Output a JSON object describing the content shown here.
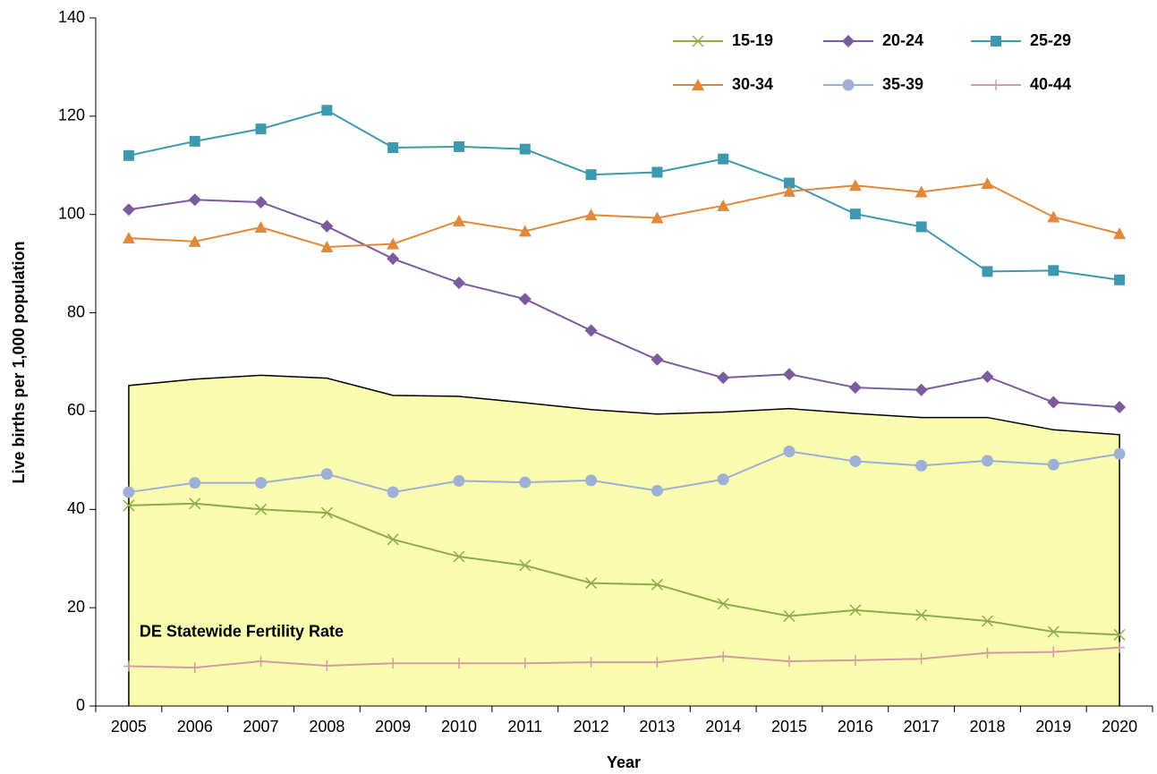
{
  "chart_data": {
    "type": "line",
    "x_label": "Year",
    "y_label": "Live births per 1,000 population",
    "categories": [
      "2005",
      "2006",
      "2007",
      "2008",
      "2009",
      "2010",
      "2011",
      "2012",
      "2013",
      "2014",
      "2015",
      "2016",
      "2017",
      "2018",
      "2019",
      "2020"
    ],
    "ylim": [
      0,
      140
    ],
    "yticks": [
      0,
      20,
      40,
      60,
      80,
      100,
      120,
      140
    ],
    "series": [
      {
        "name": "DE Statewide Fertility Rate",
        "kind": "area",
        "color": "#fafdb0",
        "values": [
          65.2,
          66.5,
          67.3,
          66.7,
          63.2,
          63.0,
          61.7,
          60.3,
          59.4,
          59.8,
          60.5,
          59.5,
          58.7,
          58.7,
          56.2,
          55.2
        ]
      },
      {
        "name": "15-19",
        "marker": "x",
        "color": "#8cac4c",
        "values": [
          40.8,
          41.2,
          40.0,
          39.3,
          33.9,
          30.4,
          28.6,
          25.0,
          24.7,
          20.8,
          18.3,
          19.5,
          18.5,
          17.3,
          15.1,
          14.5
        ]
      },
      {
        "name": "20-24",
        "marker": "diamond",
        "color": "#7b5a9e",
        "values": [
          101.0,
          103.0,
          102.5,
          97.6,
          91.0,
          86.1,
          82.8,
          76.4,
          70.5,
          66.8,
          67.5,
          64.8,
          64.3,
          67.0,
          61.8,
          60.8
        ]
      },
      {
        "name": "25-29",
        "marker": "square",
        "color": "#3d98b0",
        "values": [
          112.0,
          114.9,
          117.4,
          121.2,
          113.6,
          113.8,
          113.3,
          108.1,
          108.6,
          111.3,
          106.4,
          100.1,
          97.5,
          88.4,
          88.6,
          86.7
        ]
      },
      {
        "name": "30-34",
        "marker": "triangle",
        "color": "#e0883c",
        "values": [
          95.2,
          94.5,
          97.4,
          93.4,
          94.0,
          98.7,
          96.6,
          99.9,
          99.3,
          101.8,
          104.7,
          105.9,
          104.6,
          106.3,
          99.5,
          96.1
        ]
      },
      {
        "name": "35-39",
        "marker": "circle",
        "color": "#9fb0d8",
        "values": [
          43.5,
          45.4,
          45.4,
          47.2,
          43.5,
          45.8,
          45.5,
          45.9,
          43.8,
          46.1,
          51.8,
          49.8,
          48.9,
          49.9,
          49.1,
          51.3
        ]
      },
      {
        "name": "40-44",
        "marker": "plus",
        "color": "#d49ca0",
        "values": [
          8.1,
          7.8,
          9.1,
          8.2,
          8.7,
          8.7,
          8.7,
          8.9,
          8.9,
          10.1,
          9.1,
          9.3,
          9.6,
          10.8,
          11.0,
          11.9
        ]
      }
    ]
  }
}
